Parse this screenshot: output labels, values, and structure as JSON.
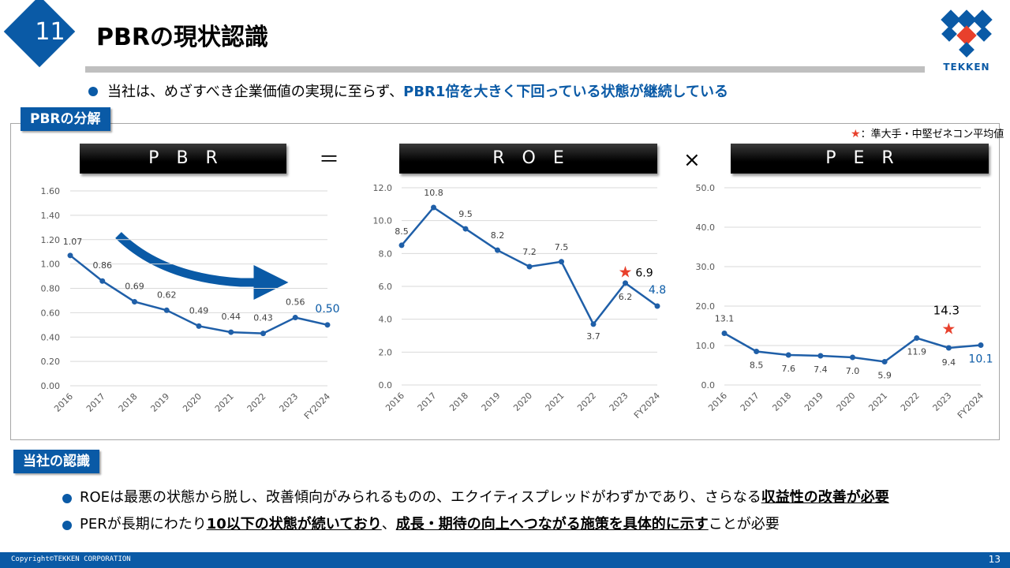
{
  "header": {
    "number": "11",
    "title": "PBRの現状認識",
    "logo_text": "TEKKEN"
  },
  "summary": {
    "prefix": "当社は、めざすべき企業価値の実現に至らず、",
    "emphasis": "PBR1倍を大きく下回っている状態が継続している"
  },
  "section_breakdown": "PBRの分解",
  "legend_note": "：準大手・中堅ゼネコン平均値",
  "headers": {
    "pbr": "P　B　R",
    "roe": "R　O　E",
    "per": "P　E　R"
  },
  "operators": {
    "equals": "＝",
    "times": "×"
  },
  "colors": {
    "brand_blue": "#0a5aa6",
    "line": "#1f5fa8",
    "star": "#e8402c",
    "grid": "#d9d9d9"
  },
  "chart_data": [
    {
      "type": "line",
      "title": "PBR",
      "categories": [
        "2016",
        "2017",
        "2018",
        "2019",
        "2020",
        "2021",
        "2022",
        "2023",
        "FY2024"
      ],
      "values": [
        1.07,
        0.86,
        0.69,
        0.62,
        0.49,
        0.44,
        0.43,
        0.56,
        0.5
      ],
      "labels": [
        "1.07",
        "0.86",
        "0.69",
        "0.62",
        "0.49",
        "0.44",
        "0.43",
        "0.56",
        "0.50"
      ],
      "yticks": [
        "0.00",
        "0.20",
        "0.40",
        "0.60",
        "0.80",
        "1.00",
        "1.20",
        "1.40",
        "1.60"
      ],
      "ylim": [
        0,
        1.6
      ],
      "grid": true,
      "annotation": "downward trend arrow"
    },
    {
      "type": "line",
      "title": "ROE",
      "categories": [
        "2016",
        "2017",
        "2018",
        "2019",
        "2020",
        "2021",
        "2022",
        "2023",
        "FY2024"
      ],
      "values": [
        8.5,
        10.8,
        9.5,
        8.2,
        7.2,
        7.5,
        3.7,
        6.2,
        4.8
      ],
      "labels": [
        "8.5",
        "10.8",
        "9.5",
        "8.2",
        "7.2",
        "7.5",
        "3.7",
        "6.2",
        "4.8"
      ],
      "yticks": [
        "0.0",
        "2.0",
        "4.0",
        "6.0",
        "8.0",
        "10.0",
        "12.0"
      ],
      "ylim": [
        0,
        12
      ],
      "grid": true,
      "peer_average": {
        "category": "2023",
        "value": 6.9,
        "label": "6.9"
      }
    },
    {
      "type": "line",
      "title": "PER",
      "categories": [
        "2016",
        "2017",
        "2018",
        "2019",
        "2020",
        "2021",
        "2022",
        "2023",
        "FY2024"
      ],
      "values": [
        13.1,
        8.5,
        7.6,
        7.4,
        7.0,
        5.9,
        11.9,
        9.4,
        10.1
      ],
      "labels": [
        "13.1",
        "8.5",
        "7.6",
        "7.4",
        "7.0",
        "5.9",
        "11.9",
        "9.4",
        "10.1"
      ],
      "yticks": [
        "0.0",
        "10.0",
        "20.0",
        "30.0",
        "40.0",
        "50.0"
      ],
      "ylim": [
        0,
        50
      ],
      "grid": true,
      "peer_average": {
        "category": "2023",
        "value": 14.3,
        "label": "14.3"
      }
    }
  ],
  "section_recognition": "当社の認識",
  "recognition": [
    {
      "text": "ROEは最悪の状態から脱し、改善傾向がみられるものの、エクイティスプレッドがわずかであり、さらなる",
      "strong": "収益性の改善が必要",
      "tail": ""
    },
    {
      "text": "PERが長期にわたり",
      "strong": "10以下の状態が続いており",
      "mid": "、",
      "strong2": "成長・期待の向上へつながる施策を具体的に示す",
      "tail": "ことが必要"
    }
  ],
  "footer": {
    "copyright": "Copyright©TEKKEN CORPORATION",
    "page": "13"
  }
}
